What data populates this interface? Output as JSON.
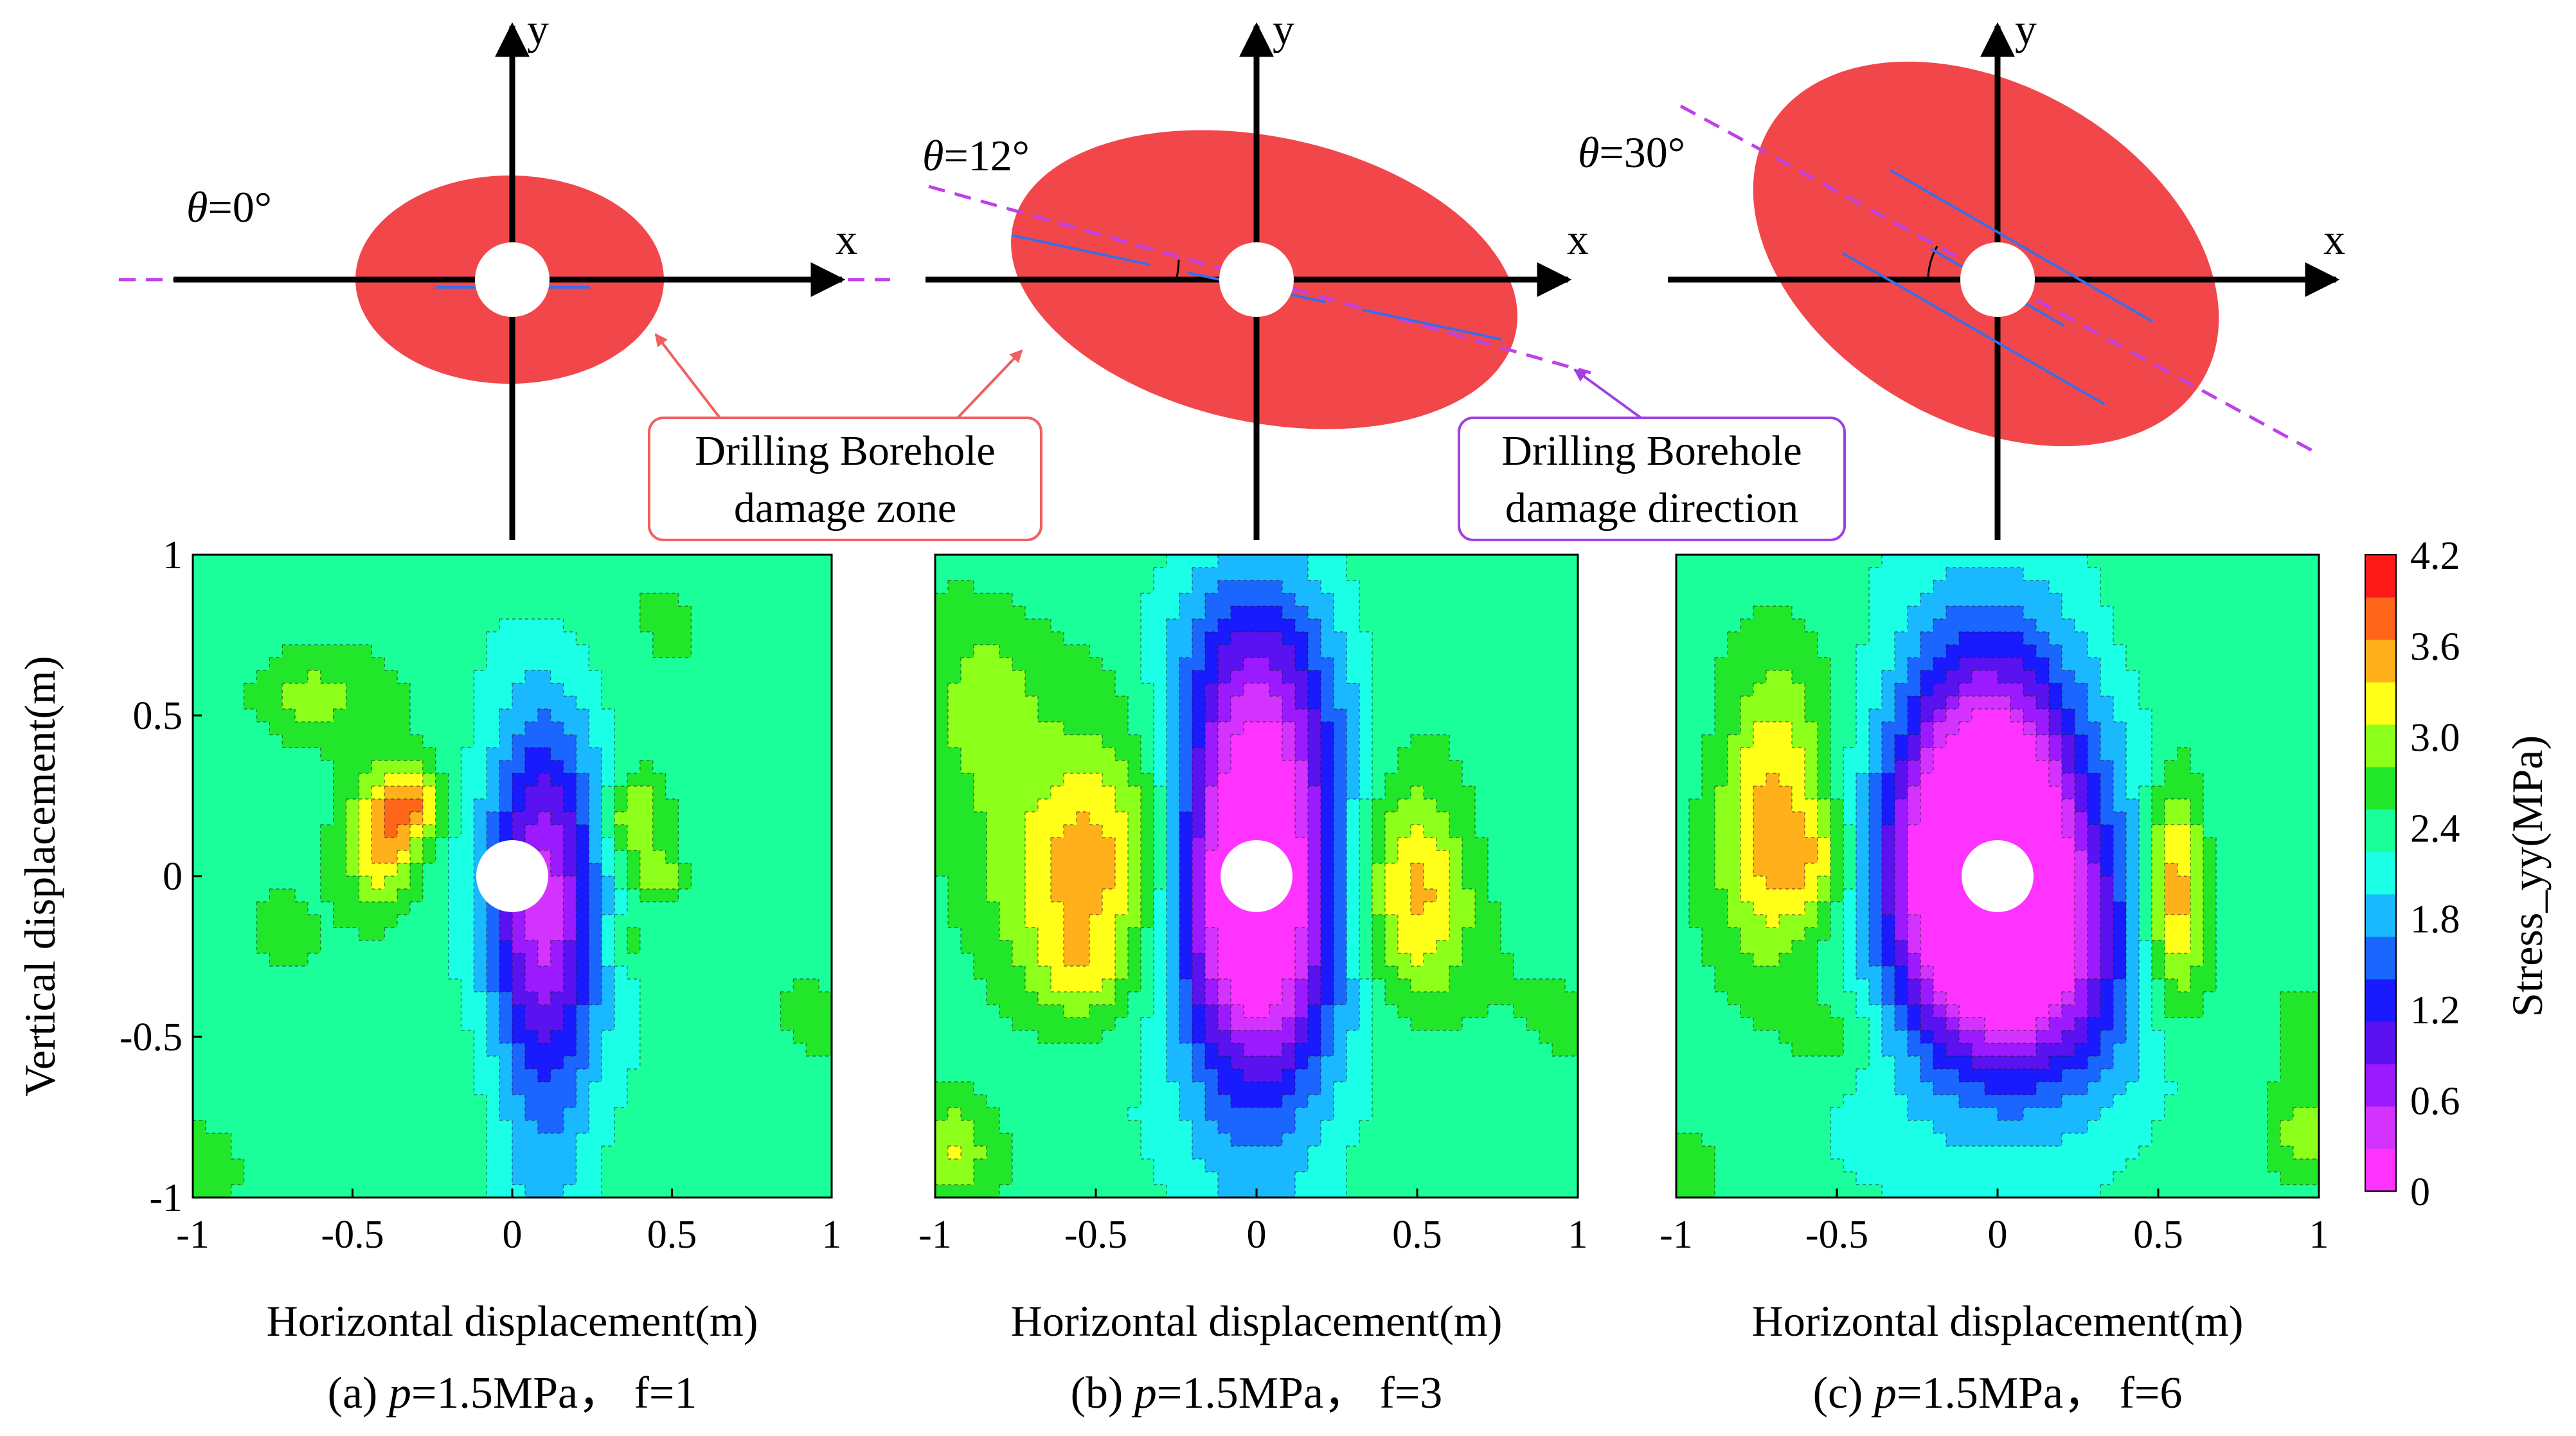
{
  "schematics": [
    {
      "theta_symbol": "θ",
      "theta_value": "=0°",
      "x_label": "x",
      "y_label": "y",
      "angle_deg": 0,
      "zone_semi_major": 0.62,
      "zone_semi_minor": 0.42,
      "crack_lines": 1
    },
    {
      "theta_symbol": "θ",
      "theta_value": "=12°",
      "x_label": "x",
      "y_label": "y",
      "angle_deg": 12,
      "zone_semi_major": 1.0,
      "zone_semi_minor": 0.62,
      "crack_lines": 3
    },
    {
      "theta_symbol": "θ",
      "theta_value": "=30°",
      "x_label": "x",
      "y_label": "y",
      "angle_deg": 30,
      "zone_semi_major": 1.0,
      "zone_semi_minor": 0.72,
      "crack_lines": 5
    }
  ],
  "callouts": {
    "damage_zone": {
      "line1": "Drilling Borehole",
      "line2": "damage zone"
    },
    "damage_direction": {
      "line1": "Drilling Borehole",
      "line2": "damage direction"
    }
  },
  "colors": {
    "damage_zone": "#f2474a",
    "crack_line": "#3a6ee8",
    "direction_line": "#c040e8",
    "callout_zone_border": "#f06060",
    "callout_dir_border": "#a040e0"
  },
  "chart_data": [
    {
      "type": "heatmap",
      "caption_prefix": "(a) ",
      "caption_p": "p",
      "caption_suffix": "=1.5MPa，  f=1",
      "xlabel": "Horizontal displacement(m)",
      "ylabel": "Vertical displacement(m)",
      "xlim": [
        -1,
        1
      ],
      "ylim": [
        -1,
        1
      ],
      "xticks": [
        "-1",
        "-0.5",
        "0",
        "0.5",
        "1"
      ],
      "yticks": [
        "1",
        "0.5",
        "0",
        "-0.5",
        "-1"
      ],
      "background_value": 2.6,
      "features": [
        {
          "x": 0.1,
          "y": 0.0,
          "sx": 0.13,
          "sy": 0.35,
          "amp": -2.0
        },
        {
          "x": 0.1,
          "y": -0.65,
          "sx": 0.12,
          "sy": 0.4,
          "amp": -0.8
        },
        {
          "x": -0.4,
          "y": 0.12,
          "sx": 0.08,
          "sy": 0.14,
          "amp": 1.3
        },
        {
          "x": -0.3,
          "y": 0.22,
          "sx": 0.06,
          "sy": 0.07,
          "amp": 0.9
        },
        {
          "x": 0.38,
          "y": 0.18,
          "sx": 0.07,
          "sy": 0.1,
          "amp": 0.8
        },
        {
          "x": 0.46,
          "y": 0.0,
          "sx": 0.05,
          "sy": 0.05,
          "amp": 0.6
        },
        {
          "x": -0.65,
          "y": 0.55,
          "sx": 0.12,
          "sy": 0.08,
          "amp": 0.5
        },
        {
          "x": 0.35,
          "y": -0.2,
          "sx": 0.05,
          "sy": 0.05,
          "amp": 0.4
        }
      ]
    },
    {
      "type": "heatmap",
      "caption_prefix": "(b) ",
      "caption_p": "p",
      "caption_suffix": "=1.5MPa，  f=3",
      "xlabel": "Horizontal displacement(m)",
      "ylabel": "",
      "xlim": [
        -1,
        1
      ],
      "ylim": [
        -1,
        1
      ],
      "xticks": [
        "-1",
        "-0.5",
        "0",
        "0.5",
        "1"
      ],
      "yticks": [],
      "background_value": 2.6,
      "features": [
        {
          "x": 0.0,
          "y": 0.05,
          "sx": 0.17,
          "sy": 0.42,
          "amp": -2.8
        },
        {
          "x": 0.0,
          "y": -0.4,
          "sx": 0.18,
          "sy": 0.5,
          "amp": -0.9
        },
        {
          "x": 0.0,
          "y": 0.7,
          "sx": 0.22,
          "sy": 0.3,
          "amp": -0.6
        },
        {
          "x": -0.5,
          "y": 0.05,
          "sx": 0.2,
          "sy": 0.25,
          "amp": 1.2
        },
        {
          "x": -0.85,
          "y": 0.5,
          "sx": 0.12,
          "sy": 0.2,
          "amp": 0.7
        },
        {
          "x": 0.5,
          "y": -0.05,
          "sx": 0.12,
          "sy": 0.25,
          "amp": 1.1
        },
        {
          "x": -0.55,
          "y": -0.3,
          "sx": 0.1,
          "sy": 0.1,
          "amp": 0.5
        },
        {
          "x": -0.95,
          "y": -0.85,
          "sx": 0.08,
          "sy": 0.1,
          "amp": 0.6
        }
      ]
    },
    {
      "type": "heatmap",
      "caption_prefix": "(c) ",
      "caption_p": "p",
      "caption_suffix": "=1.5MPa，  f=6",
      "xlabel": "Horizontal displacement(m)",
      "ylabel": "",
      "xlim": [
        -1,
        1
      ],
      "ylim": [
        -1,
        1
      ],
      "xticks": [
        "-1",
        "-0.5",
        "0",
        "0.5",
        "1"
      ],
      "yticks": [],
      "background_value": 2.6,
      "features": [
        {
          "x": -0.05,
          "y": 0.1,
          "sx": 0.18,
          "sy": 0.35,
          "amp": -2.8
        },
        {
          "x": 0.1,
          "y": -0.2,
          "sx": 0.22,
          "sy": 0.3,
          "amp": -1.6
        },
        {
          "x": 0.0,
          "y": 0.05,
          "sx": 0.3,
          "sy": 0.65,
          "amp": -1.0
        },
        {
          "x": -0.7,
          "y": 0.2,
          "sx": 0.12,
          "sy": 0.3,
          "amp": 1.2
        },
        {
          "x": -0.55,
          "y": 0.05,
          "sx": 0.08,
          "sy": 0.12,
          "amp": 0.6
        },
        {
          "x": 0.55,
          "y": -0.05,
          "sx": 0.07,
          "sy": 0.25,
          "amp": 1.5
        },
        {
          "x": -0.5,
          "y": -0.5,
          "sx": 0.1,
          "sy": 0.1,
          "amp": 0.4
        },
        {
          "x": 0.95,
          "y": -0.8,
          "sx": 0.06,
          "sy": 0.1,
          "amp": 0.6
        }
      ]
    }
  ],
  "colorbar": {
    "label": "Stress_yy(MPa)",
    "ticks": [
      "4.2",
      "3.6",
      "3.0",
      "2.4",
      "1.8",
      "1.2",
      "0.6",
      "0"
    ],
    "min": 0,
    "max": 4.2,
    "levels": [
      {
        "v": 0.0,
        "c": "#ff33ff"
      },
      {
        "v": 0.3,
        "c": "#d433ff"
      },
      {
        "v": 0.6,
        "c": "#9c1aff"
      },
      {
        "v": 0.9,
        "c": "#5a12f0"
      },
      {
        "v": 1.2,
        "c": "#1a1aff"
      },
      {
        "v": 1.5,
        "c": "#1a66ff"
      },
      {
        "v": 1.8,
        "c": "#1ab8ff"
      },
      {
        "v": 2.1,
        "c": "#1affe6"
      },
      {
        "v": 2.4,
        "c": "#1aff99"
      },
      {
        "v": 2.7,
        "c": "#22e62a"
      },
      {
        "v": 3.0,
        "c": "#8cff1a"
      },
      {
        "v": 3.3,
        "c": "#ffff1a"
      },
      {
        "v": 3.6,
        "c": "#ffb01a"
      },
      {
        "v": 3.9,
        "c": "#ff661a"
      },
      {
        "v": 4.2,
        "c": "#ff1a1a"
      }
    ]
  }
}
